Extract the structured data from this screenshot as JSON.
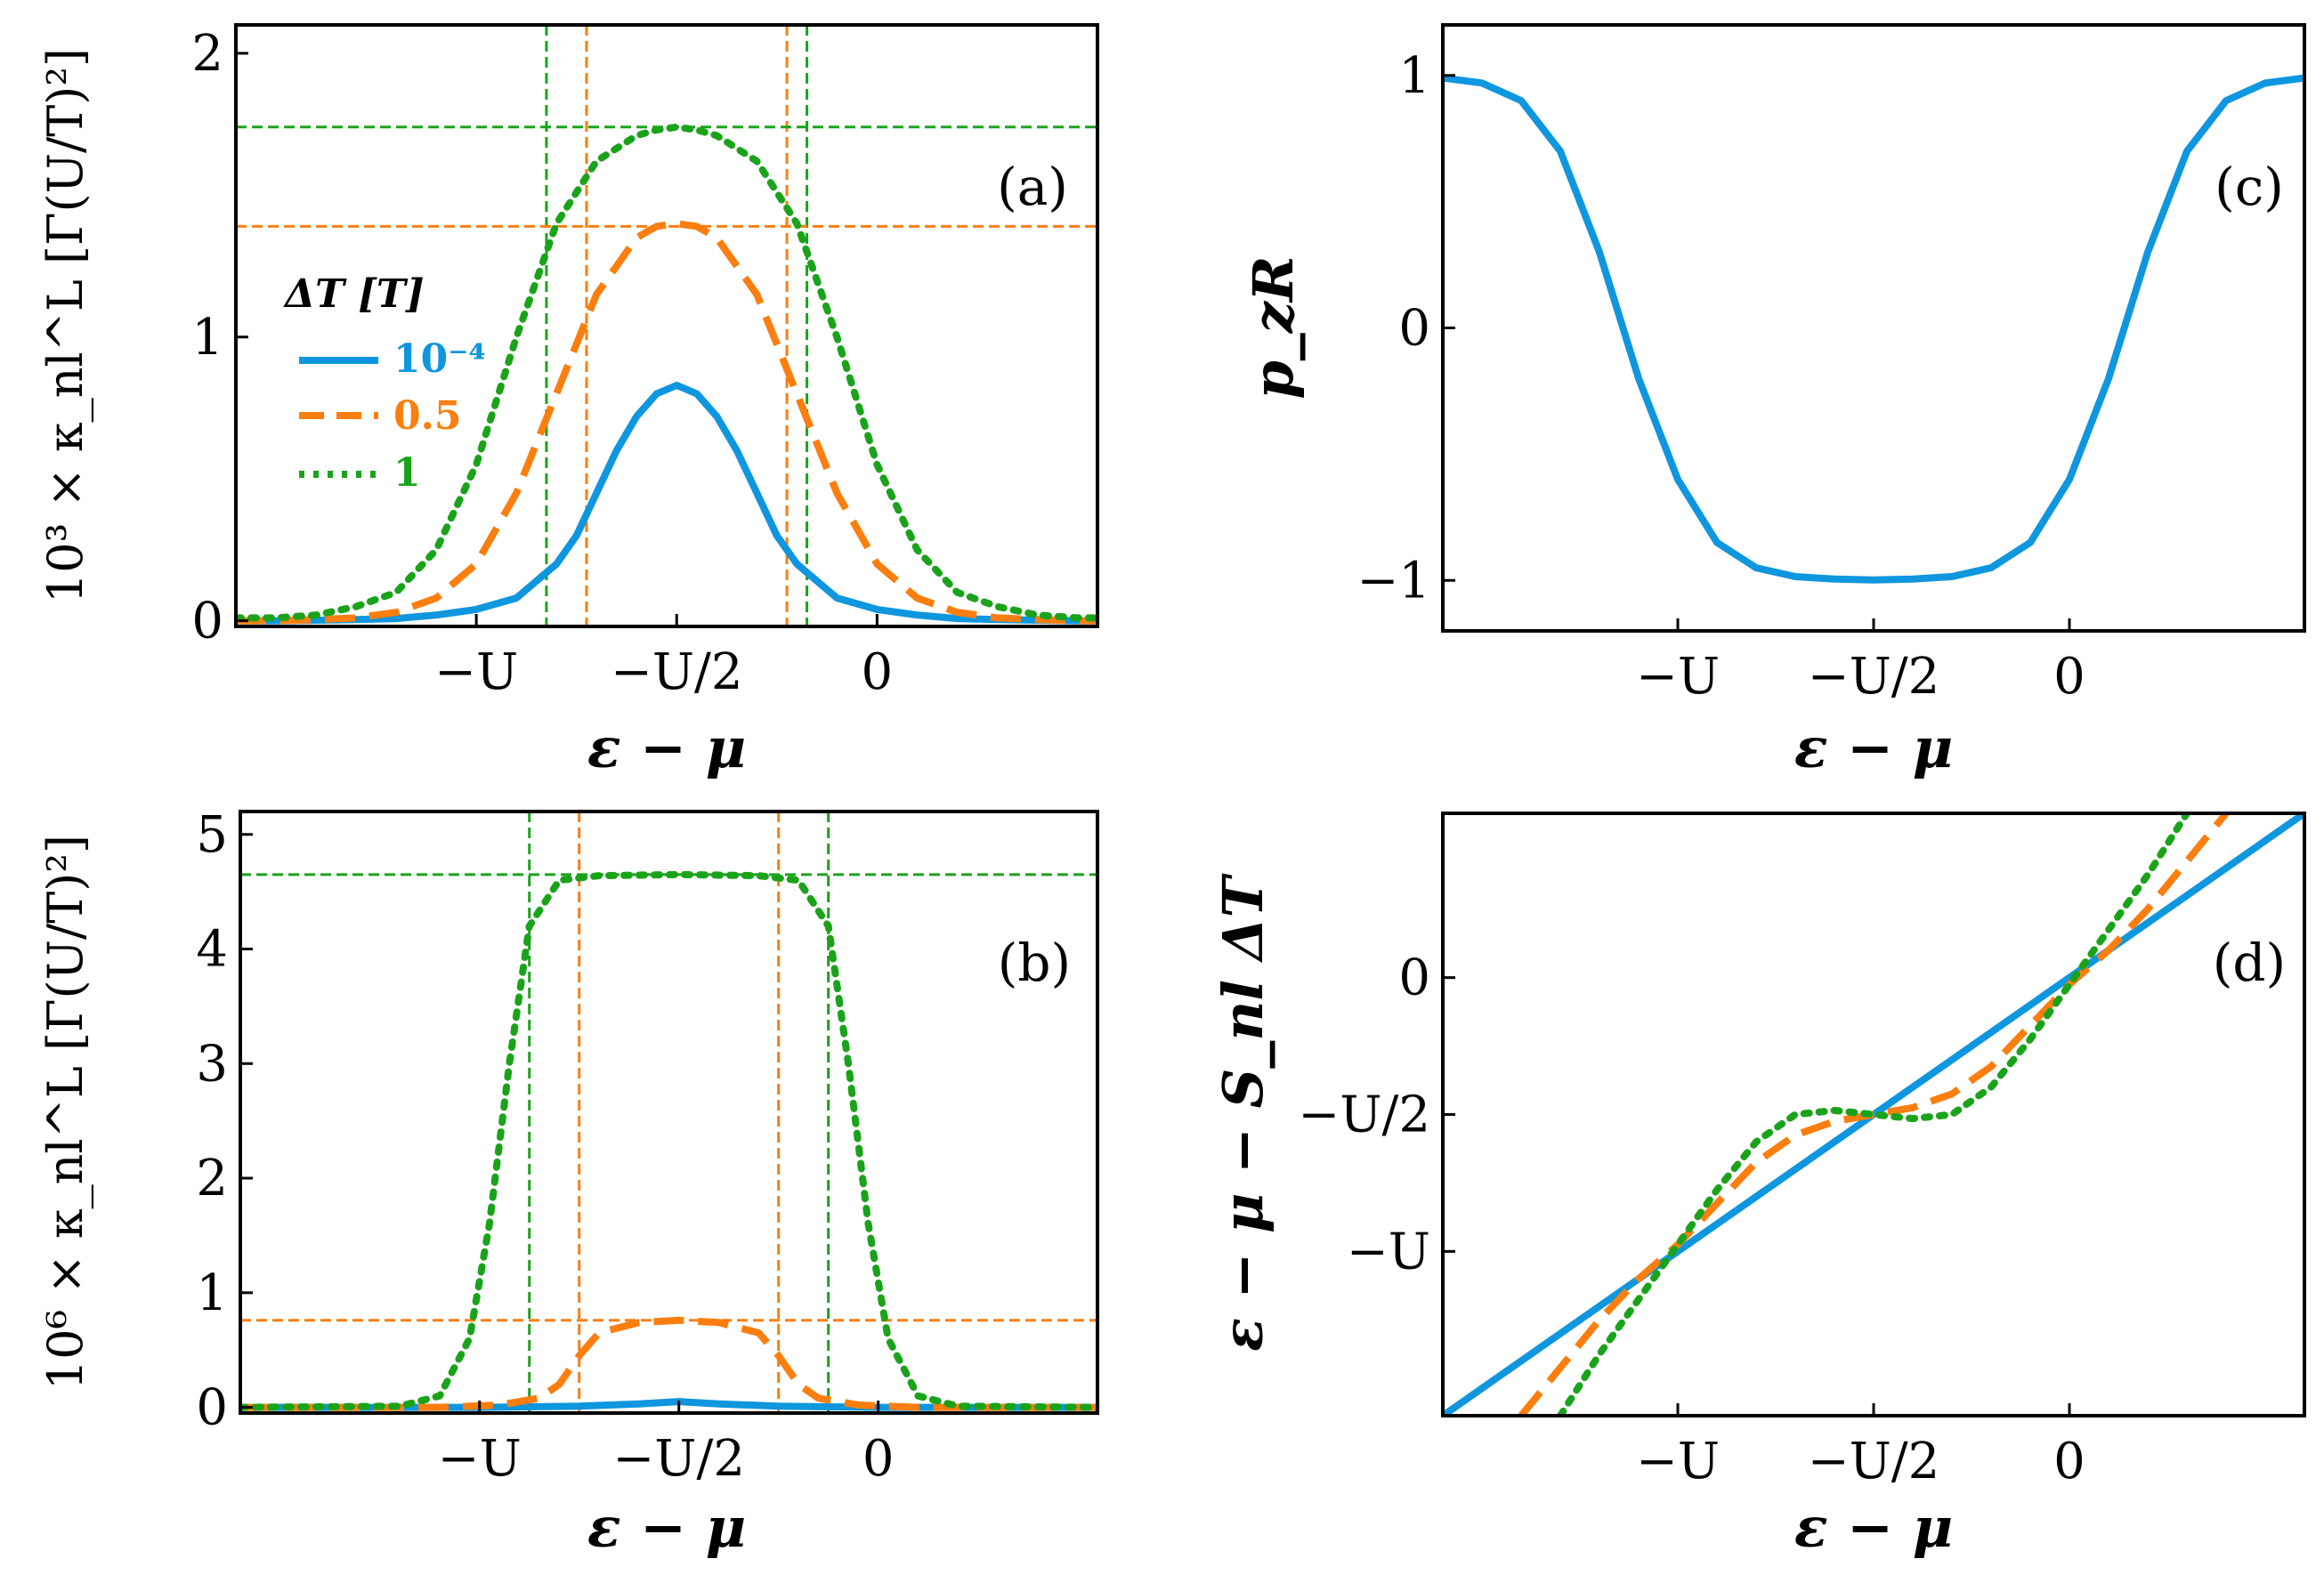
{
  "colors": {
    "blue": "#0e96df",
    "orange": "#fb7e0e",
    "green": "#1aa31a"
  },
  "legend": {
    "title": "ΔT [T]",
    "entries": [
      {
        "label": "10⁻⁴",
        "color": "#0e96df",
        "style": "solid"
      },
      {
        "label": "0.5",
        "color": "#fb7e0e",
        "style": "dashed"
      },
      {
        "label": "1",
        "color": "#1aa31a",
        "style": "dotted"
      }
    ]
  },
  "chart_data": [
    {
      "id": "a",
      "panel_label": "(a)",
      "type": "line",
      "xlabel": "ε − μ",
      "ylabel": "10³ × κ_nl^L [Γ(U/T)²]",
      "xlim": [
        -3.2,
        1.1
      ],
      "ylim": [
        -0.02,
        2.1
      ],
      "xticks": [
        {
          "v": -2,
          "label": "−U"
        },
        {
          "v": -1,
          "label": "−U/2"
        },
        {
          "v": 0,
          "label": "0"
        }
      ],
      "yticks": [
        {
          "v": 0,
          "label": "0"
        },
        {
          "v": 1,
          "label": "1"
        },
        {
          "v": 2,
          "label": "2"
        }
      ],
      "series": [
        {
          "name": "ΔT = 10⁻⁴",
          "color": "#0e96df",
          "style": "solid",
          "x": [
            -3.2,
            -3,
            -2.8,
            -2.6,
            -2.4,
            -2.2,
            -2,
            -1.8,
            -1.6,
            -1.5,
            -1.4,
            -1.3,
            -1.2,
            -1.1,
            -1,
            -0.9,
            -0.8,
            -0.7,
            -0.6,
            -0.5,
            -0.4,
            -0.2,
            0,
            0.2,
            0.4,
            0.6,
            0.8,
            1,
            1.1
          ],
          "y": [
            0,
            0,
            0.002,
            0.004,
            0.008,
            0.02,
            0.04,
            0.08,
            0.2,
            0.3,
            0.45,
            0.6,
            0.72,
            0.8,
            0.83,
            0.8,
            0.72,
            0.6,
            0.45,
            0.3,
            0.2,
            0.08,
            0.04,
            0.02,
            0.008,
            0.004,
            0.002,
            0,
            0
          ]
        },
        {
          "name": "ΔT = 0.5",
          "color": "#fb7e0e",
          "style": "dashed",
          "x": [
            -3.2,
            -3,
            -2.8,
            -2.6,
            -2.4,
            -2.2,
            -2,
            -1.8,
            -1.6,
            -1.4,
            -1.2,
            -1.1,
            -1,
            -0.9,
            -0.8,
            -0.6,
            -0.4,
            -0.2,
            0,
            0.2,
            0.4,
            0.6,
            0.8,
            1,
            1.1
          ],
          "y": [
            0,
            0,
            0.004,
            0.01,
            0.03,
            0.08,
            0.2,
            0.45,
            0.8,
            1.15,
            1.35,
            1.39,
            1.4,
            1.39,
            1.35,
            1.15,
            0.8,
            0.45,
            0.2,
            0.08,
            0.03,
            0.01,
            0.004,
            0,
            0
          ]
        },
        {
          "name": "ΔT = 1",
          "color": "#1aa31a",
          "style": "dotted",
          "x": [
            -3.2,
            -3,
            -2.8,
            -2.6,
            -2.4,
            -2.2,
            -2,
            -1.8,
            -1.6,
            -1.4,
            -1.2,
            -1.1,
            -1,
            -0.9,
            -0.8,
            -0.6,
            -0.4,
            -0.2,
            0,
            0.2,
            0.4,
            0.6,
            0.8,
            1,
            1.1
          ],
          "y": [
            0.01,
            0.01,
            0.02,
            0.05,
            0.1,
            0.25,
            0.55,
            1.0,
            1.4,
            1.62,
            1.71,
            1.73,
            1.74,
            1.73,
            1.71,
            1.62,
            1.4,
            1.0,
            0.55,
            0.25,
            0.1,
            0.05,
            0.02,
            0.01,
            0.01
          ]
        }
      ],
      "reference_lines": [
        {
          "orientation": "vertical",
          "value": -1.45,
          "color": "#fb7e0e"
        },
        {
          "orientation": "vertical",
          "value": -0.45,
          "color": "#fb7e0e"
        },
        {
          "orientation": "vertical",
          "value": -1.65,
          "color": "#1aa31a"
        },
        {
          "orientation": "vertical",
          "value": -0.35,
          "color": "#1aa31a"
        },
        {
          "orientation": "horizontal",
          "value": 1.39,
          "color": "#fb7e0e"
        },
        {
          "orientation": "horizontal",
          "value": 1.74,
          "color": "#1aa31a"
        }
      ]
    },
    {
      "id": "b",
      "panel_label": "(b)",
      "type": "line",
      "xlabel": "ε − μ",
      "ylabel": "10⁶ × κ_nl^L [Γ(U/T)²]",
      "xlim": [
        -3.2,
        1.1
      ],
      "ylim": [
        -0.05,
        5.2
      ],
      "xticks": [
        {
          "v": -2,
          "label": "−U"
        },
        {
          "v": -1,
          "label": "−U/2"
        },
        {
          "v": 0,
          "label": "0"
        }
      ],
      "yticks": [
        {
          "v": 0,
          "label": "0"
        },
        {
          "v": 1,
          "label": "1"
        },
        {
          "v": 2,
          "label": "2"
        },
        {
          "v": 3,
          "label": "3"
        },
        {
          "v": 4,
          "label": "4"
        },
        {
          "v": 5,
          "label": "5"
        }
      ],
      "series": [
        {
          "name": "ΔT = 10⁻⁴",
          "color": "#0e96df",
          "style": "solid",
          "x": [
            -3.2,
            -2,
            -1.5,
            -1.2,
            -1,
            -0.8,
            -0.5,
            0,
            1.1
          ],
          "y": [
            0,
            0,
            0.01,
            0.03,
            0.05,
            0.03,
            0.01,
            0,
            0
          ]
        },
        {
          "name": "ΔT = 0.5",
          "color": "#fb7e0e",
          "style": "dashed",
          "x": [
            -3.2,
            -2.2,
            -1.9,
            -1.7,
            -1.6,
            -1.5,
            -1.4,
            -1.2,
            -1,
            -0.8,
            -0.6,
            -0.5,
            -0.4,
            -0.3,
            -0.1,
            0.2,
            1.1
          ],
          "y": [
            0,
            0,
            0.02,
            0.08,
            0.2,
            0.45,
            0.65,
            0.74,
            0.76,
            0.74,
            0.65,
            0.45,
            0.2,
            0.08,
            0.02,
            0,
            0
          ]
        },
        {
          "name": "ΔT = 1",
          "color": "#1aa31a",
          "style": "dotted",
          "x": [
            -3.2,
            -2.4,
            -2.2,
            -2.05,
            -1.95,
            -1.85,
            -1.75,
            -1.6,
            -1.4,
            -1,
            -0.6,
            -0.4,
            -0.25,
            -0.15,
            -0.05,
            0.05,
            0.2,
            0.4,
            1.1
          ],
          "y": [
            0,
            0.01,
            0.1,
            0.6,
            1.6,
            3.0,
            4.2,
            4.6,
            4.64,
            4.65,
            4.64,
            4.6,
            4.2,
            3.0,
            1.6,
            0.6,
            0.1,
            0.01,
            0
          ]
        }
      ],
      "reference_lines": [
        {
          "orientation": "vertical",
          "value": -1.5,
          "color": "#fb7e0e"
        },
        {
          "orientation": "vertical",
          "value": -0.5,
          "color": "#fb7e0e"
        },
        {
          "orientation": "vertical",
          "value": -1.75,
          "color": "#1aa31a"
        },
        {
          "orientation": "vertical",
          "value": -0.25,
          "color": "#1aa31a"
        },
        {
          "orientation": "horizontal",
          "value": 0.76,
          "color": "#fb7e0e"
        },
        {
          "orientation": "horizontal",
          "value": 4.65,
          "color": "#1aa31a"
        }
      ]
    },
    {
      "id": "c",
      "panel_label": "(c)",
      "type": "line",
      "xlabel": "ε − μ",
      "ylabel": "p_zR",
      "xlim": [
        -3.2,
        1.2
      ],
      "ylim": [
        -1.2,
        1.2
      ],
      "xticks": [
        {
          "v": -2,
          "label": "−U"
        },
        {
          "v": -1,
          "label": "−U/2"
        },
        {
          "v": 0,
          "label": "0"
        }
      ],
      "yticks": [
        {
          "v": 1,
          "label": "1"
        },
        {
          "v": 0,
          "label": "0"
        },
        {
          "v": -1,
          "label": "−1"
        }
      ],
      "series": [
        {
          "name": "ΔT = 10⁻⁴",
          "color": "#0e96df",
          "style": "solid",
          "x": [
            -3.2,
            -3,
            -2.8,
            -2.6,
            -2.4,
            -2.2,
            -2,
            -1.8,
            -1.6,
            -1.4,
            -1.2,
            -1,
            -0.8,
            -0.6,
            -0.4,
            -0.2,
            0,
            0.2,
            0.4,
            0.6,
            0.8,
            1,
            1.2
          ],
          "y": [
            0.99,
            0.97,
            0.9,
            0.7,
            0.3,
            -0.2,
            -0.6,
            -0.85,
            -0.95,
            -0.985,
            -0.995,
            -0.998,
            -0.995,
            -0.985,
            -0.95,
            -0.85,
            -0.6,
            -0.2,
            0.3,
            0.7,
            0.9,
            0.97,
            0.99
          ]
        }
      ]
    },
    {
      "id": "d",
      "panel_label": "(d)",
      "type": "line",
      "xlabel": "ε − μ",
      "ylabel": "ε − μ − S_nl ΔT",
      "xlim": [
        -3.2,
        1.2
      ],
      "ylim": [
        -3.2,
        1.2
      ],
      "xticks": [
        {
          "v": -2,
          "label": "−U"
        },
        {
          "v": -1,
          "label": "−U/2"
        },
        {
          "v": 0,
          "label": "0"
        }
      ],
      "yticks": [
        {
          "v": 0,
          "label": "0"
        },
        {
          "v": -1,
          "label": "−U/2"
        },
        {
          "v": -2,
          "label": "−U"
        }
      ],
      "series": [
        {
          "name": "ΔT = 10⁻⁴",
          "color": "#0e96df",
          "style": "solid",
          "x": [
            -3.2,
            1.2
          ],
          "y": [
            -3.2,
            1.2
          ]
        },
        {
          "name": "ΔT = 0.5",
          "color": "#fb7e0e",
          "style": "dashed",
          "x": [
            -2.8,
            -2.6,
            -2.4,
            -2.2,
            -2,
            -1.8,
            -1.6,
            -1.4,
            -1.2,
            -1,
            -0.8,
            -0.6,
            -0.4,
            -0.2,
            0,
            0.2,
            0.4,
            0.6,
            0.8
          ],
          "y": [
            -3.2,
            -2.85,
            -2.5,
            -2.2,
            -1.95,
            -1.65,
            -1.35,
            -1.15,
            -1.05,
            -1,
            -0.95,
            -0.85,
            -0.65,
            -0.35,
            -0.05,
            0.2,
            0.5,
            0.85,
            1.2
          ]
        },
        {
          "name": "ΔT = 1",
          "color": "#1aa31a",
          "style": "dotted",
          "x": [
            -2.6,
            -2.4,
            -2.2,
            -2,
            -1.8,
            -1.6,
            -1.4,
            -1.2,
            -1,
            -0.8,
            -0.6,
            -0.4,
            -0.2,
            0,
            0.2,
            0.4,
            0.6
          ],
          "y": [
            -3.2,
            -2.75,
            -2.35,
            -1.95,
            -1.55,
            -1.2,
            -1.0,
            -0.97,
            -1.0,
            -1.03,
            -1.0,
            -0.8,
            -0.45,
            -0.05,
            0.35,
            0.75,
            1.2
          ]
        }
      ]
    }
  ]
}
